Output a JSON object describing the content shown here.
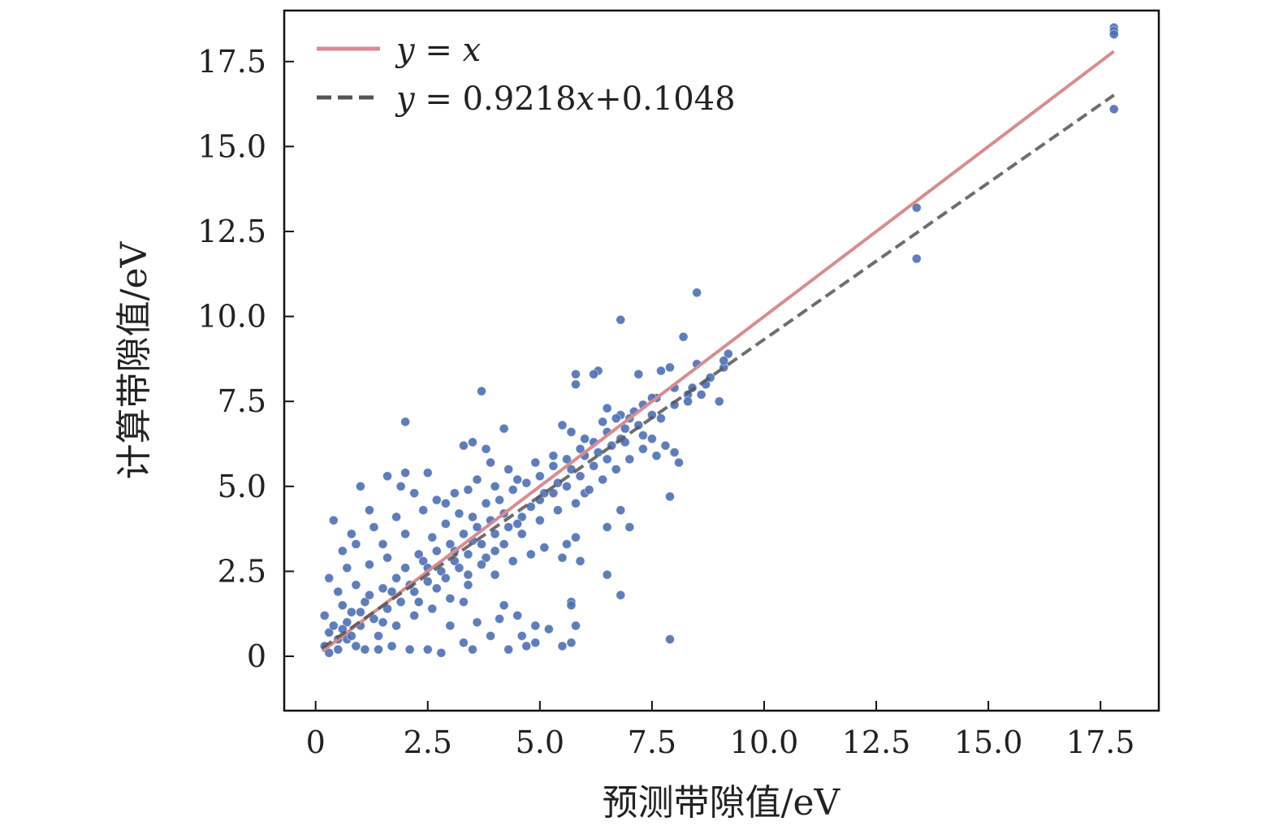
{
  "chart_data": {
    "type": "scatter",
    "xlabel": "预测带隙值/eV",
    "ylabel": "计算带隙值/eV",
    "xlim": [
      -0.7,
      18.8
    ],
    "ylim": [
      -1.6,
      19.0
    ],
    "x_ticks": [
      0,
      2.5,
      5.0,
      7.5,
      10.0,
      12.5,
      15.0,
      17.5
    ],
    "x_tick_labels": [
      "0",
      "2.5",
      "5.0",
      "7.5",
      "10.0",
      "12.5",
      "15.0",
      "17.5"
    ],
    "y_ticks": [
      0,
      2.5,
      5.0,
      7.5,
      10.0,
      12.5,
      15.0,
      17.5
    ],
    "y_tick_labels": [
      "0",
      "2.5",
      "5.0",
      "7.5",
      "10.0",
      "12.5",
      "15.0",
      "17.5"
    ],
    "grid": false,
    "legend_position": "top-left",
    "lines": [
      {
        "name": "y = x",
        "label_parts": [
          "y",
          " = ",
          "x"
        ],
        "slope": 1.0,
        "intercept": 0.0,
        "x_range": [
          0.15,
          17.8
        ],
        "color": "#D88C8F",
        "style": "solid"
      },
      {
        "name": "y = 0.9218x+0.1048",
        "label_parts": [
          "y",
          " = 0.9218",
          "x",
          "+0.1048"
        ],
        "slope": 0.9218,
        "intercept": 0.1048,
        "x_range": [
          0.15,
          17.8
        ],
        "color": "#555555",
        "style": "dashed"
      }
    ],
    "scatter_color": "#4C6FB4",
    "points": [
      [
        17.8,
        18.5
      ],
      [
        17.8,
        18.4
      ],
      [
        17.8,
        18.3
      ],
      [
        17.8,
        16.1
      ],
      [
        13.4,
        13.2
      ],
      [
        13.4,
        11.7
      ],
      [
        8.5,
        10.7
      ],
      [
        6.8,
        9.9
      ],
      [
        8.2,
        9.4
      ],
      [
        9.2,
        8.9
      ],
      [
        9.1,
        8.5
      ],
      [
        9.0,
        7.5
      ],
      [
        8.7,
        8.0
      ],
      [
        8.5,
        8.6
      ],
      [
        8.4,
        7.9
      ],
      [
        8.3,
        7.7
      ],
      [
        8.0,
        7.9
      ],
      [
        7.9,
        8.5
      ],
      [
        7.7,
        8.4
      ],
      [
        7.6,
        7.6
      ],
      [
        7.5,
        7.1
      ],
      [
        7.3,
        7.4
      ],
      [
        7.1,
        7.2
      ],
      [
        6.3,
        8.4
      ],
      [
        6.2,
        8.3
      ],
      [
        5.8,
        8.3
      ],
      [
        5.8,
        8.0
      ],
      [
        6.8,
        7.1
      ],
      [
        6.5,
        7.3
      ],
      [
        6.4,
        6.9
      ],
      [
        6.0,
        6.4
      ],
      [
        5.7,
        6.6
      ],
      [
        5.5,
        6.8
      ],
      [
        7.2,
        8.3
      ],
      [
        7.0,
        7.0
      ],
      [
        6.9,
        6.7
      ],
      [
        6.7,
        7.0
      ],
      [
        3.7,
        7.8
      ],
      [
        2.0,
        6.9
      ],
      [
        4.2,
        6.7
      ],
      [
        3.5,
        6.3
      ],
      [
        3.3,
        6.2
      ],
      [
        3.8,
        6.1
      ],
      [
        5.3,
        5.9
      ],
      [
        4.9,
        5.7
      ],
      [
        4.5,
        5.2
      ],
      [
        4.3,
        5.5
      ],
      [
        4.0,
        5.0
      ],
      [
        3.9,
        5.7
      ],
      [
        3.6,
        5.2
      ],
      [
        3.1,
        4.8
      ],
      [
        2.5,
        5.4
      ],
      [
        2.0,
        5.4
      ],
      [
        1.6,
        5.3
      ],
      [
        1.9,
        5.0
      ],
      [
        1.0,
        5.0
      ],
      [
        2.2,
        4.8
      ],
      [
        2.7,
        4.6
      ],
      [
        7.9,
        4.7
      ],
      [
        8.1,
        5.7
      ],
      [
        7.5,
        6.4
      ],
      [
        7.8,
        6.2
      ],
      [
        8.0,
        6.0
      ],
      [
        7.6,
        5.9
      ],
      [
        7.3,
        6.1
      ],
      [
        6.8,
        4.3
      ],
      [
        7.0,
        3.8
      ],
      [
        6.5,
        3.8
      ],
      [
        5.8,
        3.5
      ],
      [
        5.6,
        3.3
      ],
      [
        5.9,
        2.8
      ],
      [
        5.5,
        2.9
      ],
      [
        6.5,
        2.4
      ],
      [
        6.8,
        1.8
      ],
      [
        5.7,
        1.6
      ],
      [
        5.7,
        1.5
      ],
      [
        5.8,
        0.9
      ],
      [
        5.7,
        0.4
      ],
      [
        5.5,
        0.3
      ],
      [
        7.9,
        0.5
      ],
      [
        5.2,
        0.8
      ],
      [
        4.9,
        0.9
      ],
      [
        4.7,
        0.3
      ],
      [
        4.3,
        0.2
      ],
      [
        4.6,
        0.6
      ],
      [
        4.9,
        0.4
      ],
      [
        4.5,
        1.2
      ],
      [
        4.1,
        1.1
      ],
      [
        4.2,
        1.5
      ],
      [
        3.9,
        0.6
      ],
      [
        3.5,
        0.2
      ],
      [
        3.3,
        0.4
      ],
      [
        3.0,
        0.9
      ],
      [
        3.6,
        1.0
      ],
      [
        3.3,
        1.6
      ],
      [
        3.4,
        2.1
      ],
      [
        4.0,
        2.4
      ],
      [
        4.4,
        2.8
      ],
      [
        4.8,
        3.0
      ],
      [
        5.1,
        3.2
      ],
      [
        0.4,
        4.0
      ],
      [
        0.8,
        3.6
      ],
      [
        0.6,
        3.1
      ],
      [
        0.3,
        2.3
      ],
      [
        0.5,
        1.9
      ],
      [
        0.2,
        1.2
      ],
      [
        0.3,
        0.7
      ],
      [
        0.2,
        0.3
      ],
      [
        0.3,
        0.1
      ],
      [
        0.5,
        0.2
      ],
      [
        0.7,
        0.5
      ],
      [
        0.9,
        0.3
      ],
      [
        1.1,
        0.2
      ],
      [
        1.4,
        0.2
      ],
      [
        1.7,
        0.3
      ],
      [
        2.1,
        0.2
      ],
      [
        2.5,
        0.2
      ],
      [
        2.8,
        0.1
      ],
      [
        0.4,
        0.9
      ],
      [
        0.6,
        1.5
      ],
      [
        0.9,
        2.1
      ],
      [
        1.2,
        2.7
      ],
      [
        1.5,
        3.3
      ],
      [
        1.3,
        3.8
      ],
      [
        1.8,
        4.1
      ],
      [
        2.0,
        3.6
      ],
      [
        2.3,
        3.0
      ],
      [
        2.6,
        3.5
      ],
      [
        2.9,
        3.9
      ],
      [
        3.2,
        4.2
      ],
      [
        3.5,
        4.1
      ],
      [
        3.8,
        4.5
      ],
      [
        4.1,
        4.6
      ],
      [
        4.4,
        4.9
      ],
      [
        4.7,
        5.1
      ],
      [
        5.0,
        5.3
      ],
      [
        5.3,
        5.6
      ],
      [
        5.6,
        5.8
      ],
      [
        5.9,
        6.1
      ],
      [
        6.2,
        6.3
      ],
      [
        6.5,
        6.6
      ],
      [
        6.8,
        6.4
      ],
      [
        5.0,
        4.6
      ],
      [
        5.3,
        4.8
      ],
      [
        5.6,
        5.0
      ],
      [
        5.9,
        5.3
      ],
      [
        6.2,
        5.6
      ],
      [
        6.5,
        5.8
      ],
      [
        6.0,
        4.8
      ],
      [
        4.6,
        4.1
      ],
      [
        4.3,
        3.8
      ],
      [
        4.0,
        3.6
      ],
      [
        3.7,
        3.3
      ],
      [
        3.4,
        3.0
      ],
      [
        3.1,
        2.8
      ],
      [
        2.8,
        2.5
      ],
      [
        2.5,
        2.2
      ],
      [
        2.2,
        1.9
      ],
      [
        1.9,
        1.6
      ],
      [
        1.6,
        1.4
      ],
      [
        1.3,
        1.1
      ],
      [
        1.0,
        0.9
      ],
      [
        0.7,
        1.0
      ],
      [
        2.0,
        2.6
      ],
      [
        2.4,
        2.8
      ],
      [
        2.7,
        3.1
      ],
      [
        3.0,
        3.3
      ],
      [
        3.3,
        3.6
      ],
      [
        3.6,
        3.8
      ],
      [
        3.9,
        4.0
      ],
      [
        1.5,
        2.0
      ],
      [
        1.8,
        2.3
      ],
      [
        1.1,
        1.6
      ],
      [
        0.8,
        1.3
      ],
      [
        1.4,
        0.6
      ],
      [
        1.8,
        0.9
      ],
      [
        2.2,
        1.2
      ],
      [
        2.6,
        1.4
      ],
      [
        3.0,
        1.7
      ],
      [
        3.4,
        2.4
      ],
      [
        3.8,
        2.9
      ],
      [
        4.2,
        3.3
      ],
      [
        4.6,
        3.6
      ],
      [
        5.0,
        4.0
      ],
      [
        5.4,
        4.3
      ],
      [
        5.8,
        4.5
      ],
      [
        6.1,
        4.9
      ],
      [
        6.4,
        5.2
      ],
      [
        6.7,
        5.5
      ],
      [
        7.0,
        5.8
      ],
      [
        7.3,
        6.5
      ],
      [
        7.7,
        7.0
      ],
      [
        8.0,
        7.4
      ],
      [
        8.3,
        7.5
      ],
      [
        8.6,
        7.7
      ],
      [
        8.8,
        8.2
      ],
      [
        9.1,
        8.7
      ],
      [
        7.5,
        7.6
      ],
      [
        1.2,
        4.3
      ],
      [
        0.9,
        3.3
      ],
      [
        0.7,
        2.6
      ],
      [
        1.6,
        2.9
      ],
      [
        2.4,
        4.3
      ],
      [
        2.9,
        4.5
      ],
      [
        3.4,
        4.9
      ],
      [
        0.5,
        0.5
      ],
      [
        0.6,
        0.8
      ],
      [
        0.8,
        0.6
      ],
      [
        1.0,
        1.3
      ],
      [
        1.2,
        1.8
      ],
      [
        1.5,
        1.0
      ],
      [
        1.7,
        1.9
      ],
      [
        2.1,
        2.1
      ],
      [
        2.3,
        1.6
      ],
      [
        2.5,
        2.6
      ],
      [
        2.7,
        2.0
      ],
      [
        2.9,
        2.3
      ],
      [
        3.1,
        3.1
      ],
      [
        3.2,
        2.6
      ],
      [
        3.5,
        3.4
      ],
      [
        3.7,
        2.7
      ],
      [
        4.0,
        3.1
      ],
      [
        4.2,
        4.2
      ],
      [
        4.5,
        3.9
      ],
      [
        4.8,
        4.4
      ],
      [
        5.1,
        4.8
      ],
      [
        5.4,
        5.1
      ],
      [
        5.7,
        5.5
      ],
      [
        6.0,
        5.9
      ],
      [
        6.3,
        6.0
      ],
      [
        6.6,
        6.2
      ],
      [
        6.9,
        6.3
      ],
      [
        7.2,
        6.8
      ]
    ]
  }
}
